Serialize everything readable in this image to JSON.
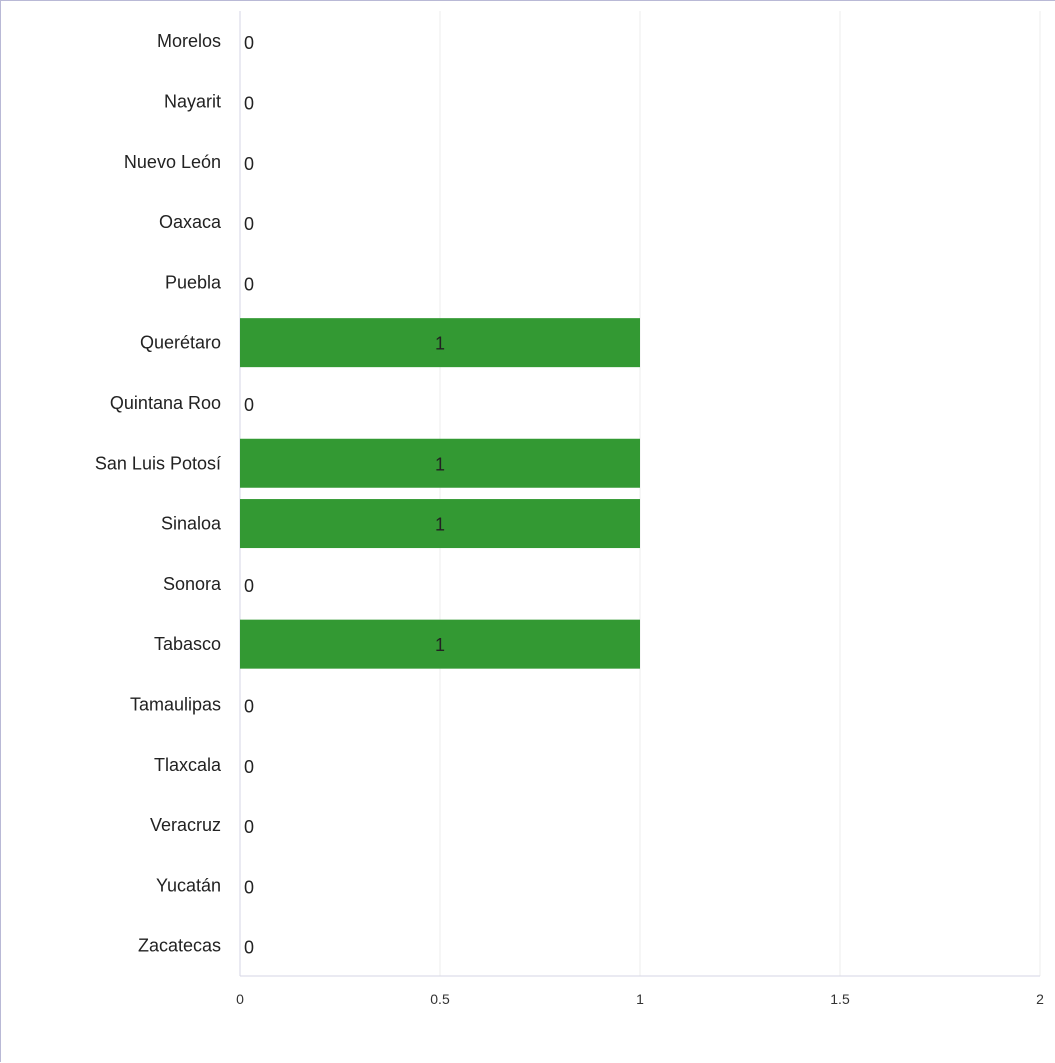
{
  "chart_data": {
    "type": "bar",
    "orientation": "horizontal",
    "title": "",
    "xlabel": "",
    "ylabel": "",
    "categories": [
      "Morelos",
      "Nayarit",
      "Nuevo León",
      "Oaxaca",
      "Puebla",
      "Querétaro",
      "Quintana Roo",
      "San Luis Potosí",
      "Sinaloa",
      "Sonora",
      "Tabasco",
      "Tamaulipas",
      "Tlaxcala",
      "Veracruz",
      "Yucatán",
      "Zacatecas"
    ],
    "values": [
      0,
      0,
      0,
      0,
      0,
      1,
      0,
      1,
      1,
      0,
      1,
      0,
      0,
      0,
      0,
      0
    ],
    "value_labels": [
      "0",
      "0",
      "0",
      "0",
      "0",
      "1",
      "0",
      "1",
      "1",
      "0",
      "1",
      "0",
      "0",
      "0",
      "0",
      "0"
    ],
    "xlim": [
      0,
      2
    ],
    "x_ticks": [
      0,
      0.5,
      1,
      1.5,
      2
    ],
    "x_tick_labels": [
      "0",
      "0.5",
      "1",
      "1.5",
      "2"
    ],
    "grid": true,
    "legend": "none",
    "bar_color": "#339933",
    "grid_color": "#eeeeee",
    "axis_color": "#d6d6e4",
    "frame_color": "#b9b9d6"
  }
}
